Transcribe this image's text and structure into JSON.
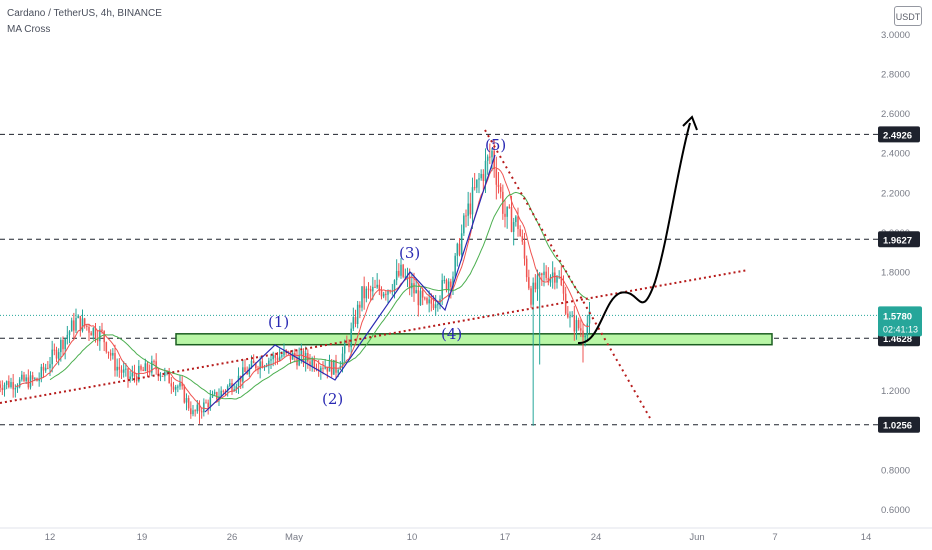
{
  "header": {
    "title": "Cardano / TetherUS, 4h, BINANCE",
    "indicator": "MA Cross"
  },
  "currency_button": "USDT",
  "price_axis": {
    "ticks": [
      "3.0000",
      "2.8000",
      "2.6000",
      "2.4000",
      "2.2000",
      "2.0000",
      "1.8000",
      "1.6000",
      "1.2000",
      "0.8000",
      "0.6000"
    ],
    "tick_values": [
      3.0,
      2.8,
      2.6,
      2.4,
      2.2,
      2.0,
      1.8,
      1.6,
      1.2,
      0.8,
      0.6
    ]
  },
  "price_labels": [
    {
      "text": "2.4926",
      "value": 2.4926,
      "color": "#1e222d"
    },
    {
      "text": "1.9627",
      "value": 1.9627,
      "color": "#1e222d"
    },
    {
      "text": "1.4628",
      "value": 1.4628,
      "color": "#1e222d"
    },
    {
      "text": "1.0256",
      "value": 1.0256,
      "color": "#1e222d"
    }
  ],
  "current_price": {
    "text": "1.5780",
    "countdown": "02:41:13",
    "value": 1.578,
    "color": "#26a69a"
  },
  "time_axis": {
    "labels": [
      "12",
      "19",
      "26",
      "May",
      "10",
      "17",
      "24",
      "Jun",
      "7",
      "14"
    ]
  },
  "wave_labels": [
    "(1)",
    "(2)",
    "(3)",
    "(4)",
    "(5)"
  ],
  "colors": {
    "up": "#26a69a",
    "down": "#ef5350",
    "ma_fast": "#ef5350",
    "ma_slow": "#4caf50",
    "wave": "#2929b3",
    "trend": "#b71c1c",
    "zone_fill": "#b9f6a6",
    "zone_border": "#1b5e20",
    "dash": "#1e222d"
  },
  "chart_data": {
    "type": "candlestick",
    "title": "Cardano / TetherUS, 4h, BINANCE",
    "indicator": "MA Cross",
    "y_axis_range": [
      0.6,
      3.0
    ],
    "horizontal_levels": [
      2.4926,
      1.9627,
      1.4628,
      1.0256
    ],
    "support_zone": [
      1.43,
      1.485
    ],
    "current_price": 1.578,
    "approx_path": [
      {
        "x": "Apr 8",
        "close": 1.23
      },
      {
        "x": "Apr 11",
        "close": 1.25
      },
      {
        "x": "Apr 13",
        "close": 1.45
      },
      {
        "x": "Apr 14",
        "close": 1.55
      },
      {
        "x": "Apr 16",
        "close": 1.48
      },
      {
        "x": "Apr 17",
        "close": 1.33
      },
      {
        "x": "Apr 18",
        "close": 1.26
      },
      {
        "x": "Apr 20",
        "close": 1.32
      },
      {
        "x": "Apr 22",
        "close": 1.21
      },
      {
        "x": "Apr 23",
        "close": 1.08
      },
      {
        "x": "Apr 25",
        "close": 1.18
      },
      {
        "x": "Apr 28",
        "close": 1.34
      },
      {
        "x": "Apr 30",
        "close": 1.38
      },
      {
        "x": "May 2",
        "close": 1.35
      },
      {
        "x": "May 4",
        "close": 1.31
      },
      {
        "x": "May 5",
        "close": 1.45
      },
      {
        "x": "May 6",
        "close": 1.68
      },
      {
        "x": "May 8",
        "close": 1.72
      },
      {
        "x": "May 9",
        "close": 1.79
      },
      {
        "x": "May 11",
        "close": 1.61
      },
      {
        "x": "May 12",
        "close": 1.7
      },
      {
        "x": "May 13",
        "close": 1.79
      },
      {
        "x": "May 14",
        "close": 2.08
      },
      {
        "x": "May 15",
        "close": 2.26
      },
      {
        "x": "May 16",
        "close": 2.4
      },
      {
        "x": "May 17",
        "close": 2.08
      },
      {
        "x": "May 18",
        "close": 2.04
      },
      {
        "x": "May 19",
        "close": 1.68
      },
      {
        "x": "May 20",
        "close": 1.78
      },
      {
        "x": "May 21",
        "close": 1.8
      },
      {
        "x": "May 22",
        "close": 1.55
      },
      {
        "x": "May 23",
        "close": 1.5
      },
      {
        "x": "May 23 16:00",
        "close": 1.578
      }
    ]
  }
}
